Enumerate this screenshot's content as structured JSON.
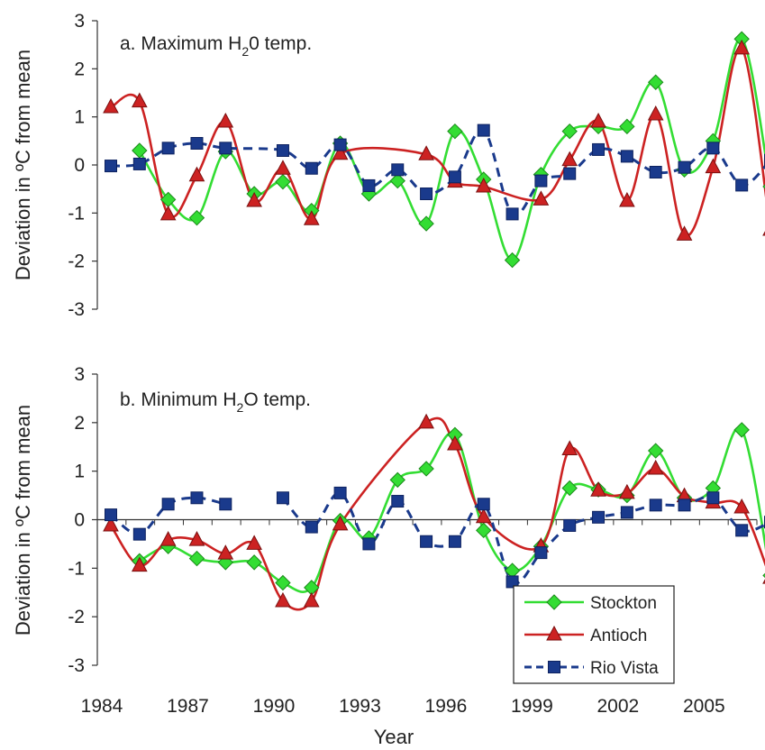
{
  "chart_data": [
    {
      "type": "line",
      "title": "a. Maximum H",
      "title_sub": "2",
      "title_rest": "0 temp.",
      "ylabel": "Deviation in ºC from mean",
      "ylim": [
        -3,
        3
      ],
      "yticks": [
        "3",
        "2",
        "1",
        "0",
        "-1",
        "-2",
        "-3"
      ],
      "xlim": [
        1984,
        2007
      ],
      "series": [
        {
          "name": "Stockton",
          "color": "#33dd33",
          "marker": "diamond",
          "dash": false,
          "x": [
            1985,
            1986,
            1987,
            1988,
            1989,
            1990,
            1991,
            1992,
            1993,
            1994,
            1995,
            1996,
            1997,
            1998,
            1999,
            2000,
            2001,
            2002,
            2003,
            2004,
            2005,
            2006,
            2007
          ],
          "y": [
            0.3,
            -0.72,
            -1.1,
            0.28,
            -0.6,
            -0.35,
            -0.95,
            0.45,
            -0.6,
            -0.33,
            -1.22,
            0.7,
            -0.3,
            -1.98,
            -0.2,
            0.7,
            0.8,
            0.8,
            1.72,
            -0.1,
            0.5,
            2.62,
            -0.45
          ]
        },
        {
          "name": "Antioch",
          "color": "#cc2222",
          "marker": "triangle",
          "dash": false,
          "x": [
            1984,
            1985,
            1986,
            1987,
            1988,
            1989,
            1990,
            1991,
            1992,
            1995,
            1996,
            1997,
            1999,
            2000,
            2001,
            2002,
            2003,
            2004,
            2005,
            2006,
            2007
          ],
          "y": [
            1.2,
            1.32,
            -1.03,
            -0.22,
            0.9,
            -0.75,
            -0.08,
            -1.13,
            0.23,
            0.22,
            -0.35,
            -0.45,
            -0.72,
            0.1,
            0.9,
            -0.75,
            1.05,
            -1.45,
            -0.05,
            2.42,
            -1.35
          ]
        },
        {
          "name": "Rio Vista",
          "color": "#1a3a8c",
          "marker": "square",
          "dash": true,
          "x": [
            1984,
            1985,
            1986,
            1987,
            1988,
            1990,
            1991,
            1992,
            1993,
            1994,
            1995,
            1996,
            1997,
            1998,
            1999,
            2000,
            2001,
            2002,
            2003,
            2004,
            2005,
            2006,
            2007
          ],
          "y": [
            -0.02,
            0.02,
            0.35,
            0.45,
            0.35,
            0.3,
            -0.07,
            0.42,
            -0.43,
            -0.1,
            -0.6,
            -0.25,
            0.72,
            -1.02,
            -0.33,
            -0.18,
            0.32,
            0.18,
            -0.15,
            -0.05,
            0.35,
            -0.42,
            0.1
          ]
        }
      ]
    },
    {
      "type": "line",
      "title": "b. Minimum H",
      "title_sub": "2",
      "title_rest": "O temp.",
      "ylabel": "Deviation in ºC from mean",
      "xlabel": "Year",
      "ylim": [
        -3,
        3
      ],
      "yticks": [
        "3",
        "2",
        "1",
        "0",
        "-1",
        "-2",
        "-3"
      ],
      "xlim": [
        1984,
        2007
      ],
      "xticks": [
        "1984",
        "1987",
        "1990",
        "1993",
        "1996",
        "1999",
        "2002",
        "2005"
      ],
      "xtick_values": [
        1984,
        1987,
        1990,
        1993,
        1996,
        1999,
        2002,
        2005
      ],
      "series": [
        {
          "name": "Stockton",
          "color": "#33dd33",
          "marker": "diamond",
          "dash": false,
          "x": [
            1985,
            1986,
            1987,
            1988,
            1989,
            1990,
            1991,
            1992,
            1993,
            1994,
            1995,
            1996,
            1997,
            1998,
            1999,
            2000,
            2001,
            2002,
            2003,
            2004,
            2005,
            2006,
            2007
          ],
          "y": [
            -0.85,
            -0.55,
            -0.8,
            -0.88,
            -0.88,
            -1.3,
            -1.4,
            -0.02,
            -0.38,
            0.82,
            1.05,
            1.75,
            -0.22,
            -1.05,
            -0.55,
            0.65,
            0.62,
            0.5,
            1.42,
            0.45,
            0.65,
            1.85,
            -1.15
          ]
        },
        {
          "name": "Antioch",
          "color": "#cc2222",
          "marker": "triangle",
          "dash": false,
          "x": [
            1984,
            1985,
            1986,
            1987,
            1988,
            1989,
            1990,
            1991,
            1992,
            1995,
            1996,
            1997,
            1999,
            2000,
            2001,
            2002,
            2003,
            2004,
            2005,
            2006,
            2007
          ],
          "y": [
            -0.12,
            -0.95,
            -0.42,
            -0.42,
            -0.7,
            -0.5,
            -1.68,
            -1.68,
            -0.1,
            2.0,
            1.55,
            0.05,
            -0.55,
            1.45,
            0.6,
            0.55,
            1.05,
            0.48,
            0.35,
            0.25,
            -1.2
          ]
        },
        {
          "name": "Rio Vista",
          "color": "#1a3a8c",
          "marker": "square",
          "dash": true,
          "x": [
            1984,
            1985,
            1986,
            1987,
            1988
          ],
          "y": [
            0.1,
            -0.3,
            0.32,
            0.45,
            0.32
          ],
          "segments": [
            {
              "x": [
                1984,
                1985,
                1986,
                1987,
                1988
              ],
              "y": [
                0.1,
                -0.3,
                0.32,
                0.45,
                0.32
              ]
            },
            {
              "x": [
                1990,
                1991,
                1992,
                1993,
                1994,
                1995,
                1996,
                1997,
                1998,
                1999,
                2000,
                2001,
                2002,
                2003,
                2004,
                2005,
                2006,
                2007
              ],
              "y": [
                0.45,
                -0.15,
                0.55,
                -0.5,
                0.38,
                -0.45,
                -0.45,
                0.32,
                -1.28,
                -0.68,
                -0.12,
                0.05,
                0.15,
                0.3,
                0.3,
                0.45,
                -0.22,
                -0.05
              ]
            }
          ]
        }
      ],
      "legend": {
        "placement": "bottom-right",
        "entries": [
          "Stockton",
          "Antioch",
          "Rio Vista"
        ]
      }
    }
  ]
}
